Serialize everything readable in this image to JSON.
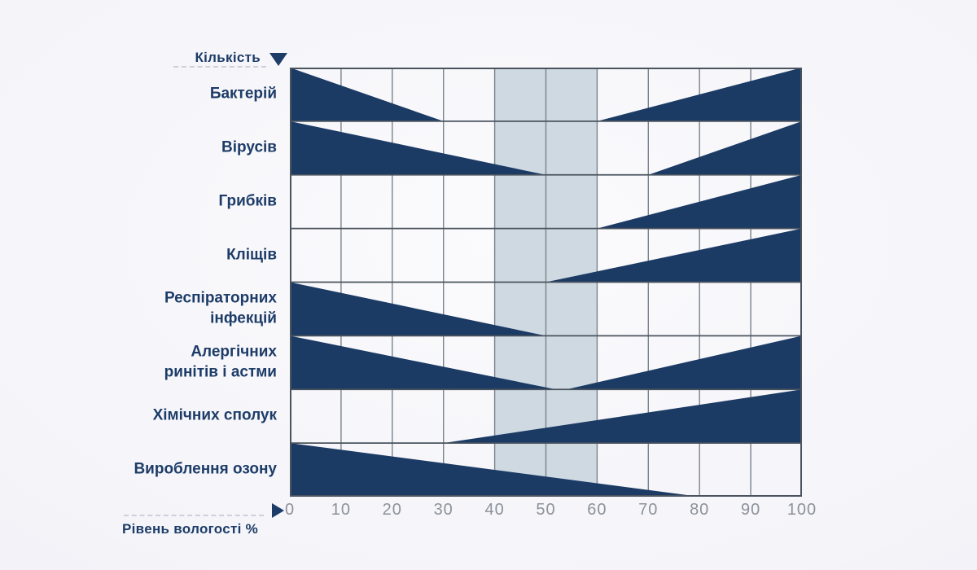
{
  "chart_data": {
    "type": "area",
    "title": "",
    "y_axis": {
      "label": "Кількість",
      "direction": "down"
    },
    "x_axis": {
      "label": "Рівень вологості %",
      "range": [
        0,
        100
      ],
      "ticks": [
        0,
        10,
        20,
        30,
        40,
        50,
        60,
        70,
        80,
        90,
        100
      ]
    },
    "optimal_band": {
      "from": 40,
      "to": 60
    },
    "rows": [
      {
        "label": "Бактерій",
        "wedges": [
          {
            "type": "decreasing",
            "from": 0,
            "to": 30
          },
          {
            "type": "increasing",
            "from": 60,
            "to": 100
          }
        ]
      },
      {
        "label": "Вірусів",
        "wedges": [
          {
            "type": "decreasing",
            "from": 0,
            "to": 50
          },
          {
            "type": "increasing",
            "from": 70,
            "to": 100
          }
        ]
      },
      {
        "label": "Грибків",
        "wedges": [
          {
            "type": "increasing",
            "from": 60,
            "to": 100
          }
        ]
      },
      {
        "label": "Кліщів",
        "wedges": [
          {
            "type": "increasing",
            "from": 50,
            "to": 100
          }
        ]
      },
      {
        "label": "Респіраторних\nінфекцій",
        "wedges": [
          {
            "type": "decreasing",
            "from": 0,
            "to": 50
          }
        ]
      },
      {
        "label": "Алергічних\nринітів і астми",
        "wedges": [
          {
            "type": "decreasing",
            "from": 0,
            "to": 52
          },
          {
            "type": "increasing",
            "from": 54,
            "to": 100
          }
        ]
      },
      {
        "label": "Хімічних сполук",
        "wedges": [
          {
            "type": "increasing",
            "from": 30,
            "to": 100
          }
        ]
      },
      {
        "label": "Вироблення озону",
        "wedges": [
          {
            "type": "decreasing",
            "from": 0,
            "to": 80
          }
        ]
      }
    ],
    "colors": {
      "wedge": "#1b3a64",
      "band": "#cfd9e2",
      "grid_vertical": "#7a828b",
      "grid_horizontal": "#4a545e",
      "tick_text": "#8d9199",
      "label_text": "#1d3c68"
    },
    "legend": {
      "visible": false
    },
    "grid": true
  },
  "icons": {
    "y_axis_arrow": "triangle-down",
    "x_axis_arrow": "triangle-right"
  },
  "page": {
    "background_center": "#fbfbfd",
    "background_edge": "#eae9f3"
  }
}
